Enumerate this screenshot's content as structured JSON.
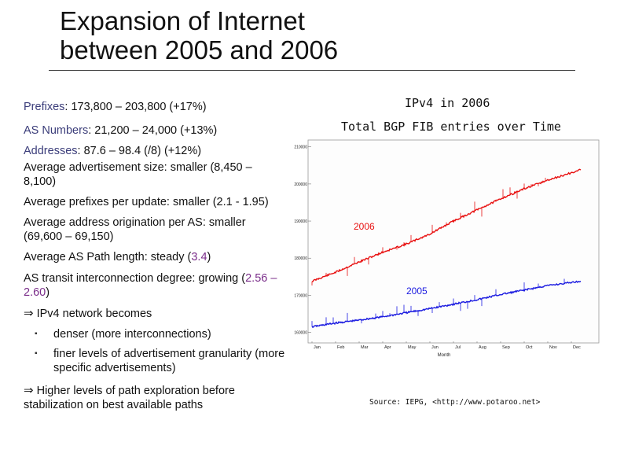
{
  "title": {
    "line1": "Expansion of Internet",
    "line2": "between 2005 and 2006"
  },
  "stats": [
    {
      "label": "Prefixes",
      "value": "173,800 – 203,800 (+17%)"
    },
    {
      "label": "AS Numbers",
      "value": "21,200 – 24,000 (+13%)"
    },
    {
      "label": "Addresses",
      "value": "87.6 – 98.4 (/8) (+12%)"
    }
  ],
  "metrics": [
    "Average advertisement size: smaller (8,450 – 8,100)",
    "Average prefixes per update: smaller (2.1 - 1.95)",
    "Average address origination per AS: smaller (69,600 – 69,150)"
  ],
  "path_length": {
    "prefix": "Average AS Path length: steady (",
    "value": "3.4",
    "suffix": ")"
  },
  "transit": {
    "prefix": "AS transit interconnection degree: growing (",
    "value": "2.56 – 2.60",
    "suffix": ")"
  },
  "conclusion1": {
    "arrow": "⇒",
    "text": "IPv4 network becomes"
  },
  "sub_bullets": [
    "denser (more interconnections)",
    "finer levels of advertisement granularity (more specific advertisements)"
  ],
  "conclusion2": {
    "arrow": "⇒",
    "text": "Higher levels of path exploration before stabilization on best available paths"
  },
  "chart_titles": {
    "line1": "IPv4 in 2006",
    "line2": "Total BGP FIB entries over Time"
  },
  "source": "Source: IEPG, <http://www.potaroo.net>",
  "colors": {
    "series_2006": "#e81010",
    "series_2005": "#1a1ae0",
    "stat_label": "#3b3d7a",
    "stat_value": "#7a2d8a"
  },
  "chart_data": {
    "type": "line",
    "title": "Total BGP FIB entries over Time",
    "xlabel": "Month",
    "ylabel": "",
    "categories": [
      "Jan",
      "Feb",
      "Mar",
      "Apr",
      "May",
      "Jun",
      "Jul",
      "Aug",
      "Sep",
      "Oct",
      "Nov",
      "Dec"
    ],
    "y_ticks": [
      "210000",
      "200000",
      "190000",
      "180000",
      "170000",
      "160000"
    ],
    "ylim": [
      158000,
      211000
    ],
    "series": [
      {
        "name": "2006",
        "x": [
          0,
          1,
          2,
          3,
          4,
          5,
          6,
          7,
          8,
          9,
          10,
          11.4
        ],
        "values": [
          173800,
          176200,
          179000,
          181600,
          183800,
          186500,
          190000,
          193000,
          196000,
          198700,
          201000,
          203800
        ]
      },
      {
        "name": "2005",
        "x": [
          0,
          1,
          2,
          3,
          4,
          5,
          6,
          7,
          8,
          9,
          10,
          11.4
        ],
        "values": [
          161500,
          162500,
          163300,
          164200,
          165300,
          166400,
          167600,
          168800,
          170200,
          171400,
          172600,
          173800
        ]
      }
    ],
    "grid": false,
    "legend": "inline labels"
  }
}
